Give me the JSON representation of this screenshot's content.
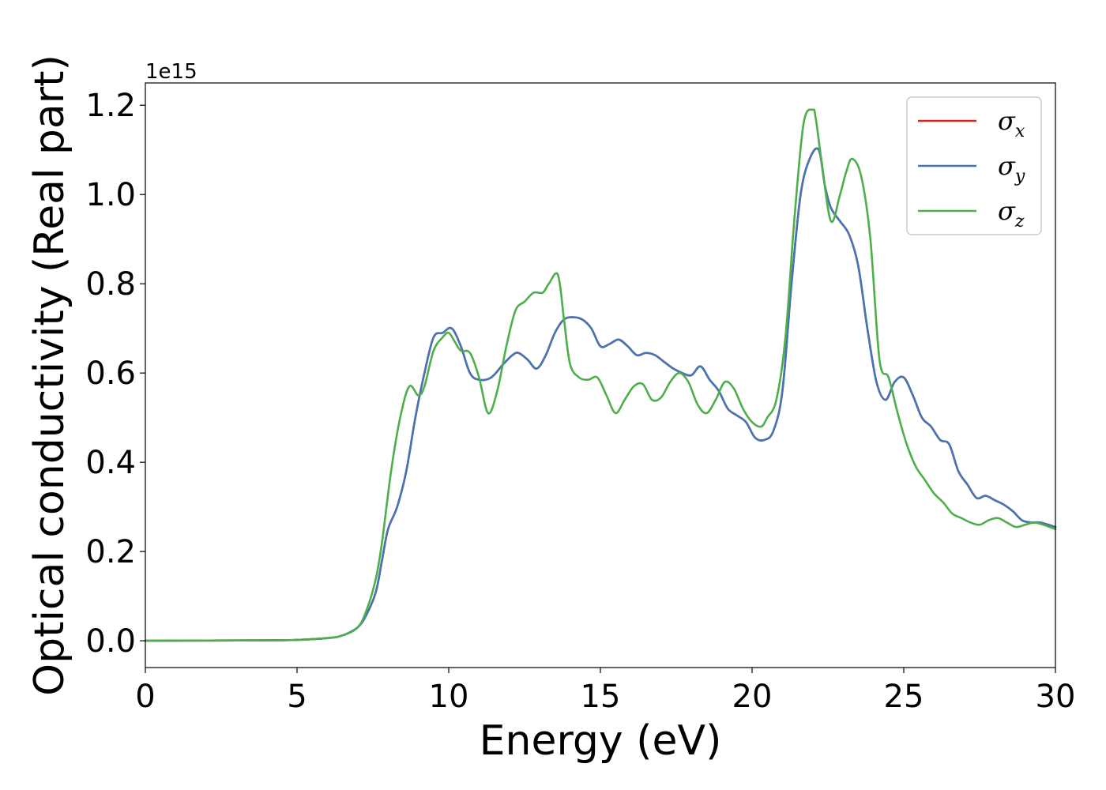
{
  "chart_data": {
    "type": "line",
    "xlabel": "Energy (eV)",
    "ylabel": "Optical conductivity (Real part)",
    "y_offset_label": "1e15",
    "xlim": [
      0,
      30
    ],
    "ylim": [
      -0.06,
      1.25
    ],
    "xticks": [
      0,
      5,
      10,
      15,
      20,
      25,
      30
    ],
    "xtick_labels": [
      "0",
      "5",
      "10",
      "15",
      "20",
      "25",
      "30"
    ],
    "yticks": [
      0.0,
      0.2,
      0.4,
      0.6,
      0.8,
      1.0,
      1.2
    ],
    "ytick_labels": [
      "0.0",
      "0.2",
      "0.4",
      "0.6",
      "0.8",
      "1.0",
      "1.2"
    ],
    "grid": false,
    "legend_position": "top-right",
    "series": [
      {
        "name": "σx",
        "legend_base": "σ",
        "legend_sub": "x",
        "color": "#d62728",
        "x": [
          0,
          4,
          5,
          6,
          6.5,
          7,
          7.3,
          7.6,
          7.8,
          8,
          8.3,
          8.6,
          8.9,
          9.2,
          9.5,
          9.8,
          10.1,
          10.4,
          10.7,
          11,
          11.4,
          11.8,
          12.1,
          12.3,
          12.6,
          12.9,
          13.2,
          13.5,
          13.8,
          14.1,
          14.4,
          14.7,
          15,
          15.3,
          15.6,
          15.9,
          16.2,
          16.5,
          16.8,
          17.1,
          17.4,
          17.7,
          18,
          18.3,
          18.6,
          18.9,
          19.2,
          19.5,
          19.8,
          20.1,
          20.4,
          20.7,
          21,
          21.3,
          21.6,
          21.9,
          22.2,
          22.4,
          22.6,
          22.9,
          23.2,
          23.5,
          23.8,
          24.1,
          24.4,
          24.7,
          25,
          25.3,
          25.6,
          25.9,
          26.2,
          26.5,
          26.8,
          27.1,
          27.4,
          27.7,
          28,
          28.3,
          28.6,
          28.9,
          29.2,
          29.5,
          30
        ],
        "y": [
          0.0,
          0.001,
          0.002,
          0.006,
          0.012,
          0.03,
          0.06,
          0.11,
          0.18,
          0.25,
          0.3,
          0.38,
          0.5,
          0.6,
          0.68,
          0.69,
          0.7,
          0.66,
          0.6,
          0.585,
          0.59,
          0.62,
          0.64,
          0.645,
          0.63,
          0.61,
          0.64,
          0.69,
          0.72,
          0.725,
          0.72,
          0.7,
          0.66,
          0.665,
          0.675,
          0.66,
          0.64,
          0.645,
          0.64,
          0.625,
          0.61,
          0.6,
          0.595,
          0.615,
          0.585,
          0.56,
          0.52,
          0.505,
          0.49,
          0.455,
          0.45,
          0.47,
          0.56,
          0.8,
          1.0,
          1.08,
          1.1,
          1.02,
          0.97,
          0.94,
          0.91,
          0.84,
          0.7,
          0.58,
          0.54,
          0.58,
          0.59,
          0.55,
          0.5,
          0.48,
          0.45,
          0.44,
          0.38,
          0.35,
          0.32,
          0.325,
          0.315,
          0.305,
          0.29,
          0.27,
          0.265,
          0.265,
          0.255
        ]
      },
      {
        "name": "σy",
        "legend_base": "σ",
        "legend_sub": "y",
        "color": "#4575b4",
        "x": [
          0,
          4,
          5,
          6,
          6.5,
          7,
          7.3,
          7.6,
          7.8,
          8,
          8.3,
          8.6,
          8.9,
          9.2,
          9.5,
          9.8,
          10.1,
          10.4,
          10.7,
          11,
          11.4,
          11.8,
          12.1,
          12.3,
          12.6,
          12.9,
          13.2,
          13.5,
          13.8,
          14.1,
          14.4,
          14.7,
          15,
          15.3,
          15.6,
          15.9,
          16.2,
          16.5,
          16.8,
          17.1,
          17.4,
          17.7,
          18,
          18.3,
          18.6,
          18.9,
          19.2,
          19.5,
          19.8,
          20.1,
          20.4,
          20.7,
          21,
          21.3,
          21.6,
          21.9,
          22.2,
          22.4,
          22.6,
          22.9,
          23.2,
          23.5,
          23.8,
          24.1,
          24.4,
          24.7,
          25,
          25.3,
          25.6,
          25.9,
          26.2,
          26.5,
          26.8,
          27.1,
          27.4,
          27.7,
          28,
          28.3,
          28.6,
          28.9,
          29.2,
          29.5,
          30
        ],
        "y": [
          0.0,
          0.001,
          0.002,
          0.006,
          0.012,
          0.03,
          0.06,
          0.11,
          0.18,
          0.25,
          0.3,
          0.38,
          0.5,
          0.6,
          0.68,
          0.69,
          0.7,
          0.66,
          0.6,
          0.585,
          0.59,
          0.62,
          0.64,
          0.645,
          0.63,
          0.61,
          0.64,
          0.69,
          0.72,
          0.725,
          0.72,
          0.7,
          0.66,
          0.665,
          0.675,
          0.66,
          0.64,
          0.645,
          0.64,
          0.625,
          0.61,
          0.6,
          0.595,
          0.615,
          0.585,
          0.56,
          0.52,
          0.505,
          0.49,
          0.455,
          0.45,
          0.47,
          0.56,
          0.8,
          1.0,
          1.08,
          1.1,
          1.02,
          0.97,
          0.94,
          0.91,
          0.84,
          0.7,
          0.58,
          0.54,
          0.58,
          0.59,
          0.55,
          0.5,
          0.48,
          0.45,
          0.44,
          0.38,
          0.35,
          0.32,
          0.325,
          0.315,
          0.305,
          0.29,
          0.27,
          0.265,
          0.265,
          0.255
        ]
      },
      {
        "name": "σz",
        "legend_base": "σ",
        "legend_sub": "z",
        "color": "#4daf4a",
        "x": [
          0,
          4,
          5,
          6,
          6.5,
          7,
          7.3,
          7.6,
          7.8,
          8.1,
          8.4,
          8.7,
          9.0,
          9.2,
          9.5,
          9.8,
          10.0,
          10.2,
          10.4,
          10.7,
          11.0,
          11.3,
          11.6,
          11.9,
          12.2,
          12.5,
          12.8,
          13.1,
          13.3,
          13.6,
          13.8,
          14.0,
          14.3,
          14.6,
          14.9,
          15.2,
          15.5,
          15.8,
          16.1,
          16.4,
          16.7,
          17.0,
          17.3,
          17.6,
          17.9,
          18.2,
          18.5,
          18.8,
          19.1,
          19.4,
          19.7,
          20.0,
          20.3,
          20.5,
          20.8,
          21.1,
          21.4,
          21.7,
          22.0,
          22.1,
          22.3,
          22.6,
          22.9,
          23.1,
          23.3,
          23.6,
          23.9,
          24.2,
          24.5,
          24.8,
          25.1,
          25.4,
          25.7,
          26.0,
          26.3,
          26.6,
          26.9,
          27.2,
          27.5,
          27.8,
          28.1,
          28.4,
          28.7,
          29.0,
          29.3,
          29.6,
          30
        ],
        "y": [
          0.0,
          0.001,
          0.002,
          0.006,
          0.012,
          0.03,
          0.07,
          0.14,
          0.22,
          0.38,
          0.5,
          0.57,
          0.55,
          0.57,
          0.65,
          0.68,
          0.69,
          0.67,
          0.65,
          0.645,
          0.59,
          0.51,
          0.56,
          0.66,
          0.74,
          0.76,
          0.78,
          0.78,
          0.8,
          0.82,
          0.72,
          0.62,
          0.59,
          0.585,
          0.59,
          0.55,
          0.51,
          0.54,
          0.57,
          0.575,
          0.54,
          0.545,
          0.58,
          0.6,
          0.58,
          0.53,
          0.51,
          0.54,
          0.58,
          0.565,
          0.52,
          0.49,
          0.48,
          0.5,
          0.54,
          0.68,
          0.95,
          1.16,
          1.19,
          1.17,
          1.07,
          0.94,
          1.0,
          1.05,
          1.08,
          1.04,
          0.9,
          0.63,
          0.59,
          0.51,
          0.44,
          0.39,
          0.36,
          0.33,
          0.31,
          0.285,
          0.275,
          0.265,
          0.26,
          0.27,
          0.275,
          0.265,
          0.255,
          0.26,
          0.265,
          0.26,
          0.25
        ]
      }
    ]
  }
}
